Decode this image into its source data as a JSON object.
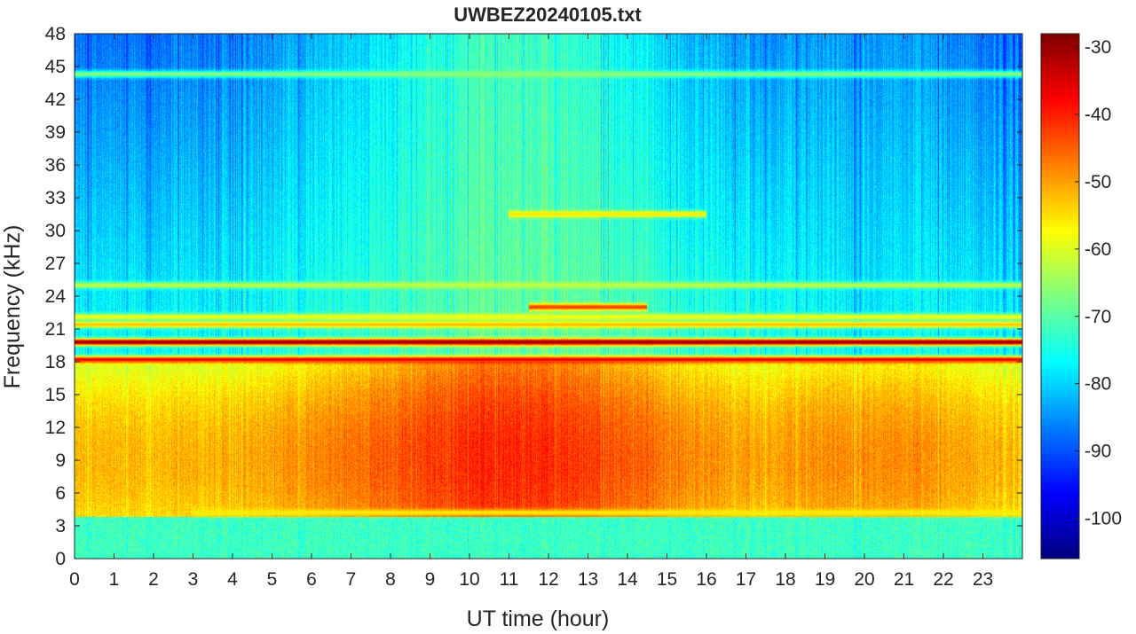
{
  "chart_data": {
    "type": "heatmap",
    "title": "UWBEZ20240105.txt",
    "xlabel": "UT time (hour)",
    "ylabel": "Frequency (kHz)",
    "xlim": [
      0,
      24
    ],
    "ylim": [
      0,
      48
    ],
    "x_ticks": [
      "0",
      "1",
      "2",
      "3",
      "4",
      "5",
      "6",
      "7",
      "8",
      "9",
      "10",
      "11",
      "12",
      "13",
      "14",
      "15",
      "16",
      "17",
      "18",
      "19",
      "20",
      "21",
      "22",
      "23"
    ],
    "y_ticks": [
      "0",
      "3",
      "6",
      "9",
      "12",
      "15",
      "18",
      "21",
      "24",
      "27",
      "30",
      "33",
      "36",
      "39",
      "42",
      "45",
      "48"
    ],
    "colormap": "jet",
    "colorbar": {
      "min": -106,
      "max": -28,
      "ticks": [
        "-30",
        "-40",
        "-50",
        "-60",
        "-70",
        "-80",
        "-90",
        "-100"
      ]
    },
    "grid": false,
    "background_level_db": -76,
    "upper_band_depression_db": -12,
    "broadband_noise": {
      "freq_range_khz": [
        3.8,
        18
      ],
      "peak_level_db": -40,
      "peak_time_hour": 11,
      "dawn_level_db": -52
    },
    "low_frequency_band": {
      "freq_range_khz": [
        0,
        3.8
      ],
      "level_db": -72
    },
    "narrowband_lines": [
      {
        "freq_khz": 19.8,
        "level_db": -29
      },
      {
        "freq_khz": 18.2,
        "level_db": -36,
        "start_hour": 0,
        "end_hour": 24
      },
      {
        "freq_khz": 21.4,
        "level_db": -52
      },
      {
        "freq_khz": 22.1,
        "level_db": -58
      },
      {
        "freq_khz": 25.0,
        "level_db": -62
      },
      {
        "freq_khz": 44.3,
        "level_db": -66
      },
      {
        "freq_khz": 4.2,
        "level_db": -56,
        "start_hour": 3,
        "end_hour": 24
      },
      {
        "freq_khz": 23.0,
        "level_db": -42,
        "start_hour": 11.5,
        "end_hour": 14.5
      },
      {
        "freq_khz": 31.5,
        "level_db": -55,
        "start_hour": 11,
        "end_hour": 16
      }
    ]
  }
}
